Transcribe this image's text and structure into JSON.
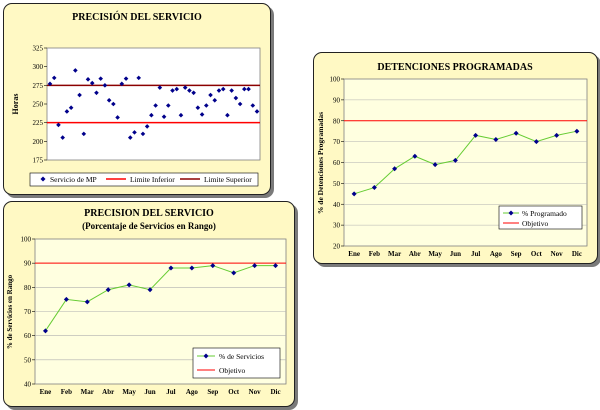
{
  "chart_data": [
    {
      "id": "precision-servicio",
      "type": "scatter",
      "title": "PRECISIÓN DEL SERVICIO",
      "ylabel": "Horas",
      "ylim": [
        175,
        325
      ],
      "yticks": [
        175,
        200,
        225,
        250,
        275,
        300,
        325
      ],
      "limits": {
        "inferior": 225,
        "superior": 275
      },
      "legend": [
        "Servicio de MP",
        "Limite Inferior",
        "Limite Superior"
      ],
      "legend_position": "bottom",
      "grid": false,
      "colors": {
        "points": "#00008b",
        "lower": "#ff0000",
        "upper": "#8b0000",
        "plot_bg": "#ffffff"
      },
      "values": [
        277,
        285,
        222,
        205,
        240,
        245,
        295,
        262,
        210,
        283,
        278,
        265,
        284,
        275,
        255,
        250,
        232,
        277,
        284,
        205,
        212,
        285,
        210,
        220,
        235,
        248,
        272,
        233,
        248,
        268,
        270,
        235,
        272,
        268,
        265,
        245,
        236,
        248,
        262,
        255,
        268,
        270,
        235,
        268,
        258,
        250,
        270,
        270,
        248,
        240
      ]
    },
    {
      "id": "detenciones-programadas",
      "type": "line",
      "title": "DETENCIONES PROGRAMADAS",
      "ylabel": "% de Detenciones Programadas",
      "ylim": [
        20,
        100
      ],
      "yticks": [
        20,
        30,
        40,
        50,
        60,
        70,
        80,
        90,
        100
      ],
      "categories": [
        "Ene",
        "Feb",
        "Mar",
        "Abr",
        "May",
        "Jun",
        "Jul",
        "Ago",
        "Sep",
        "Oct",
        "Nov",
        "Dic"
      ],
      "series": [
        {
          "name": "% Programado",
          "values": [
            45,
            48,
            57,
            63,
            59,
            61,
            73,
            71,
            74,
            70,
            73,
            75
          ]
        },
        {
          "name": "Objetivo",
          "values": [
            80,
            80,
            80,
            80,
            80,
            80,
            80,
            80,
            80,
            80,
            80,
            80
          ]
        }
      ],
      "legend_position": "bottom-right",
      "grid": true,
      "colors": {
        "line": "#66cc33",
        "marker": "#00008b",
        "target": "#ff0000",
        "plot_bg": "#ffffe0",
        "grid": "#b0b0b0"
      }
    },
    {
      "id": "precision-rango",
      "type": "line",
      "title": "PRECISION DEL SERVICIO",
      "subtitle": "(Porcentaje de Servicios en Rango)",
      "ylabel": "% de Servicios en Rango",
      "ylim": [
        40,
        100
      ],
      "yticks": [
        40,
        50,
        60,
        70,
        80,
        90,
        100
      ],
      "categories": [
        "Ene",
        "Feb",
        "Mar",
        "Abr",
        "May",
        "Jun",
        "Jul",
        "Ago",
        "Sep",
        "Oct",
        "Nov",
        "Dic"
      ],
      "series": [
        {
          "name": "% de Servicios",
          "values": [
            62,
            75,
            74,
            79,
            81,
            79,
            88,
            88,
            89,
            86,
            89,
            89
          ]
        },
        {
          "name": "Objetivo",
          "values": [
            90,
            90,
            90,
            90,
            90,
            90,
            90,
            90,
            90,
            90,
            90,
            90
          ]
        }
      ],
      "legend_position": "bottom-right",
      "grid": true,
      "colors": {
        "line": "#66cc33",
        "marker": "#00008b",
        "target": "#ff0000",
        "plot_bg": "#ffffe0",
        "grid": "#b0b0b0"
      }
    }
  ]
}
